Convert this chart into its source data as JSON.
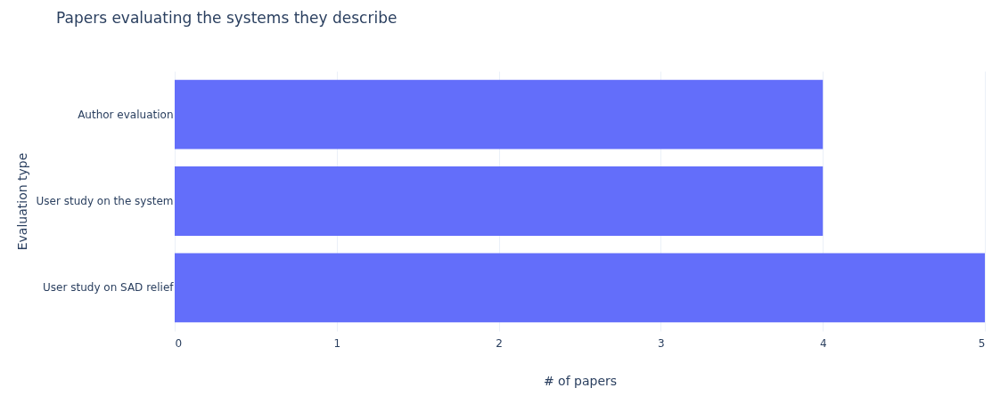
{
  "chart_data": {
    "type": "bar",
    "orientation": "horizontal",
    "title": "Papers evaluating the systems they describe",
    "xlabel": "# of papers",
    "ylabel": "Evaluation type",
    "categories": [
      "Author evaluation",
      "User study on the system",
      "User study on SAD relief"
    ],
    "values": [
      4,
      4,
      5
    ],
    "color": "#636efa",
    "xlim": [
      0,
      5
    ],
    "xticks": [
      0,
      1,
      2,
      3,
      4,
      5
    ],
    "grid": "x"
  }
}
